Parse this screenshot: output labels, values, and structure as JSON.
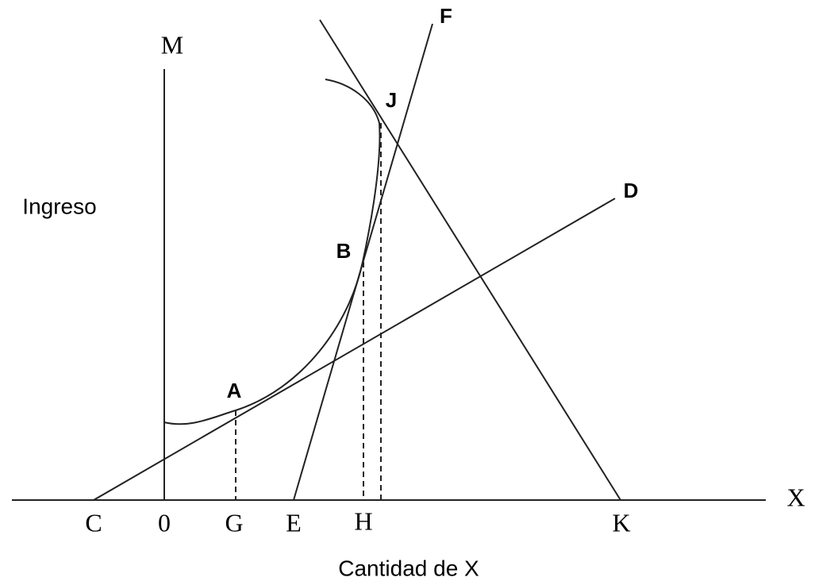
{
  "axes": {
    "y_name": "M",
    "x_name": "X",
    "y_label": "Ingreso",
    "x_label": "Cantidad de X"
  },
  "x_points": [
    "C",
    "0",
    "G",
    "E",
    "H",
    "K"
  ],
  "curve_points": [
    "A",
    "B",
    "J"
  ],
  "line_ends": [
    "D",
    "F"
  ]
}
